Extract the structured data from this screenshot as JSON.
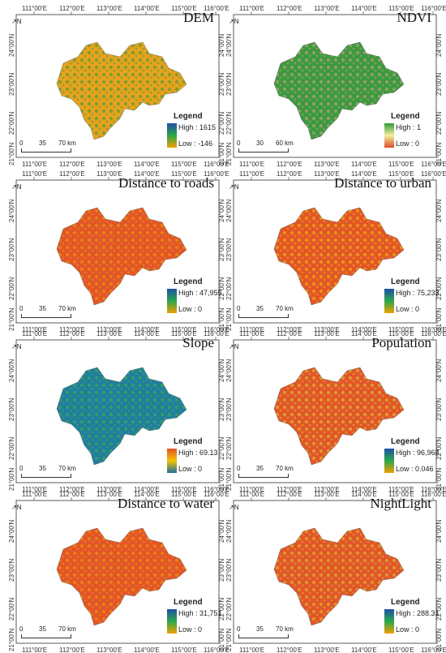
{
  "lon_ticks": [
    "111°00′E",
    "112°00′E",
    "113°00′E",
    "114°00′E",
    "115°00′E",
    "116°00′E"
  ],
  "lat_ticks": [
    "24°00′N",
    "23°00′N",
    "22°00′N",
    "21°00′N"
  ],
  "north_label": "N",
  "panels": [
    {
      "title": "DEM",
      "legend_title": "Legend",
      "high": "High : 1615",
      "low": "Low : -146",
      "scale": [
        "0",
        "35",
        "70 km"
      ],
      "colors": {
        "top": "#1f4fa8",
        "mid": "#2aa84a",
        "bottom": "#f0a000"
      },
      "fill": "#e8a21c",
      "texture": "#2a9a45"
    },
    {
      "title": "NDVI",
      "legend_title": "Legend",
      "high": "High : 1",
      "low": "Low : 0",
      "scale": [
        "0",
        "30",
        "60 km"
      ],
      "colors": {
        "top": "#2f9a3a",
        "mid": "#f2f0a0",
        "bottom": "#e04a2a"
      },
      "fill": "#3a9a3e",
      "texture": "#d9a08a"
    },
    {
      "title": "Distance to roads",
      "legend_title": "Legend",
      "high": "High : 47,955",
      "low": "Low : 0",
      "scale": [
        "0",
        "35",
        "70 km"
      ],
      "colors": {
        "top": "#1f4fa8",
        "mid": "#2aa84a",
        "bottom": "#f0a000"
      },
      "fill": "#e2552a",
      "texture": "#f0a000"
    },
    {
      "title": "Distance to urban",
      "legend_title": "Legend",
      "high": "High : 75,233",
      "low": "Low : 0",
      "scale": [
        "0",
        "35",
        "70 km"
      ],
      "colors": {
        "top": "#1f4fa8",
        "mid": "#2aa84a",
        "bottom": "#f0a000"
      },
      "fill": "#e2552a",
      "texture": "#f2c400"
    },
    {
      "title": "Slope",
      "legend_title": "Legend",
      "high": "High : 69.13",
      "low": "Low : 0",
      "scale": [
        "0",
        "35",
        "70 km"
      ],
      "colors": {
        "top": "#e2552a",
        "mid": "#f2c400",
        "bottom": "#1a6fa0"
      },
      "fill": "#1e7fa0",
      "texture": "#4fae3c"
    },
    {
      "title": "Population",
      "legend_title": "Legend",
      "high": "High : 96,968",
      "low": "Low : 0.046",
      "scale": [
        "0",
        "35",
        "70 km"
      ],
      "colors": {
        "top": "#1f4fa8",
        "mid": "#2aa84a",
        "bottom": "#f0a000"
      },
      "fill": "#e2552a",
      "texture": "#d9cf30"
    },
    {
      "title": "Distance to water",
      "legend_title": "Legend",
      "high": "High : 31,751",
      "low": "Low : 0",
      "scale": [
        "0",
        "35",
        "70 km"
      ],
      "colors": {
        "top": "#1f4fa8",
        "mid": "#2aa84a",
        "bottom": "#f0a000"
      },
      "fill": "#e2552a",
      "texture": "#f0a000"
    },
    {
      "title": "NightLight",
      "legend_title": "Legend",
      "high": "High : 288.31",
      "low": "Low : 0",
      "scale": [
        "0",
        "35",
        "70 km"
      ],
      "colors": {
        "top": "#1f4fa8",
        "mid": "#2aa84a",
        "bottom": "#f0a000"
      },
      "fill": "#e2552a",
      "texture": "#d8c828"
    }
  ]
}
